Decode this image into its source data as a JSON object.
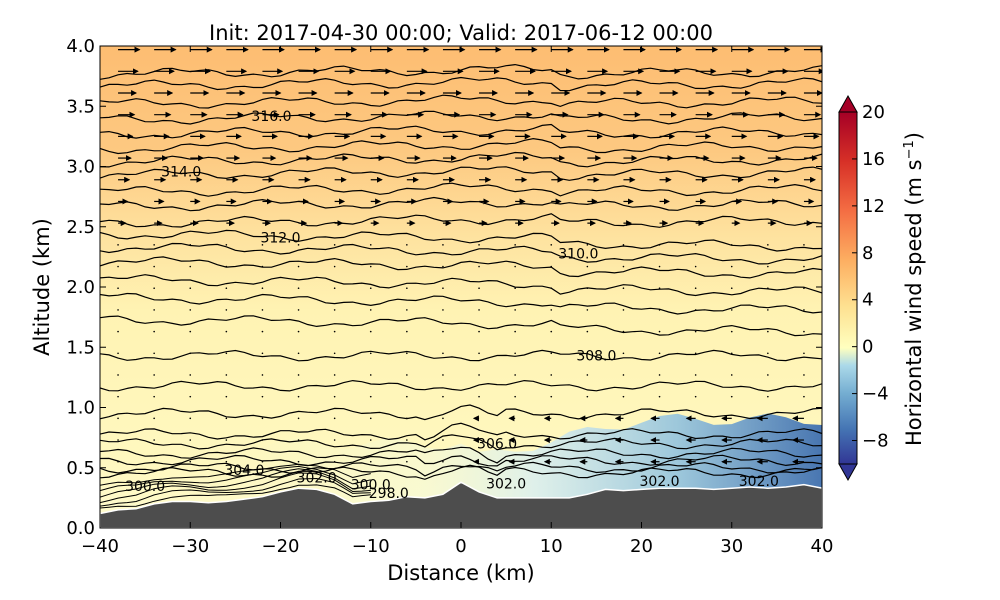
{
  "chart_data": {
    "type": "heatmap",
    "title": "Init: 2017-04-30 00:00; Valid: 2017-06-12 00:00",
    "xlabel": "Distance (km)",
    "ylabel": "Altitude (km)",
    "xlim": [
      -40,
      40
    ],
    "ylim": [
      0.0,
      4.0
    ],
    "x_ticks": [
      "−40",
      "−30",
      "−20",
      "−10",
      "0",
      "10",
      "20",
      "30",
      "40"
    ],
    "y_ticks": [
      "0.0",
      "0.5",
      "1.0",
      "1.5",
      "2.0",
      "2.5",
      "3.0",
      "3.5",
      "4.0"
    ],
    "colorbar": {
      "label": "Horizontal wind speed (m s",
      "label_sup": "−1",
      "label_close": ")",
      "range": [
        -10,
        20
      ],
      "ticks": [
        "20",
        "16",
        "12",
        "8",
        "4",
        "0",
        "−4",
        "−8"
      ],
      "extend": "both",
      "colors": [
        "#313695",
        "#4575b4",
        "#74add1",
        "#abd9e9",
        "#e0f3f8",
        "#ffffbf",
        "#fee090",
        "#fdae61",
        "#f46d43",
        "#d73027",
        "#a50026"
      ]
    },
    "shading": {
      "description_colors": {
        "upper": "#fdbf6f",
        "middle": "#fff5b5",
        "lower_east": "#4575b4",
        "terrain": "#4d4d4d"
      }
    },
    "terrain": {
      "x": [
        -40,
        -38,
        -36,
        -34,
        -32,
        -30,
        -28,
        -26,
        -24,
        -22,
        -20,
        -18,
        -16,
        -14,
        -12,
        -10,
        -8,
        -6,
        -4,
        -2,
        0,
        2,
        4,
        6,
        8,
        10,
        12,
        14,
        16,
        18,
        20,
        22,
        24,
        26,
        28,
        30,
        32,
        34,
        36,
        38,
        40
      ],
      "y": [
        0.12,
        0.15,
        0.16,
        0.2,
        0.22,
        0.22,
        0.21,
        0.22,
        0.24,
        0.26,
        0.3,
        0.33,
        0.32,
        0.28,
        0.2,
        0.22,
        0.23,
        0.26,
        0.25,
        0.28,
        0.38,
        0.3,
        0.25,
        0.25,
        0.25,
        0.25,
        0.25,
        0.28,
        0.32,
        0.31,
        0.32,
        0.33,
        0.33,
        0.33,
        0.32,
        0.33,
        0.34,
        0.33,
        0.34,
        0.36,
        0.33
      ]
    },
    "contours": [
      {
        "level": "316.0",
        "base": 3.42,
        "amp": 0.03,
        "label_x": -21,
        "label_y": 3.42
      },
      {
        "level": "314.0",
        "base": 2.96,
        "amp": 0.03,
        "label_x": -31,
        "label_y": 2.96
      },
      {
        "level": "312.0",
        "base": 2.41,
        "amp": 0.04,
        "label_x": -20,
        "label_y": 2.41
      },
      {
        "level": "310.0",
        "base": 2.28,
        "amp": 0.04,
        "label_x": 13,
        "label_y": 2.28
      },
      {
        "level": "308.0",
        "base": 1.43,
        "amp": 0.03,
        "label_x": 15,
        "label_y": 1.43
      },
      {
        "level": "306.0",
        "base": 0.7,
        "amp": 0.05,
        "label_x": 4,
        "label_y": 0.7
      },
      {
        "level": "304.0",
        "base": 0.48,
        "amp": 0.03,
        "label_x": -24,
        "label_y": 0.48
      },
      {
        "level": "302.0",
        "base": 0.38,
        "amp": 0.03,
        "label_x": -16,
        "label_y": 0.42
      },
      {
        "level": "302.0",
        "base": 0.38,
        "amp": 0.03,
        "label_x": 5,
        "label_y": 0.37
      },
      {
        "level": "302.0",
        "base": 0.38,
        "amp": 0.03,
        "label_x": 22,
        "label_y": 0.39
      },
      {
        "level": "302.0",
        "base": 0.38,
        "amp": 0.03,
        "label_x": 33,
        "label_y": 0.39
      },
      {
        "level": "300.0",
        "base": 0.35,
        "amp": 0.02,
        "label_x": -35,
        "label_y": 0.35
      },
      {
        "level": "300.0",
        "base": 0.35,
        "amp": 0.02,
        "label_x": -10,
        "label_y": 0.36
      },
      {
        "level": "298.0",
        "base": 0.3,
        "amp": 0.02,
        "label_x": -8,
        "label_y": 0.29
      }
    ],
    "isentrope_levels": [
      3.8,
      3.7,
      3.55,
      3.42,
      3.3,
      3.18,
      3.07,
      2.96,
      2.82,
      2.7,
      2.56,
      2.41,
      2.3,
      2.18,
      2.03,
      1.88,
      1.7,
      1.43,
      1.18,
      0.95,
      0.78,
      0.7,
      0.62,
      0.56,
      0.5,
      0.46
    ]
  }
}
